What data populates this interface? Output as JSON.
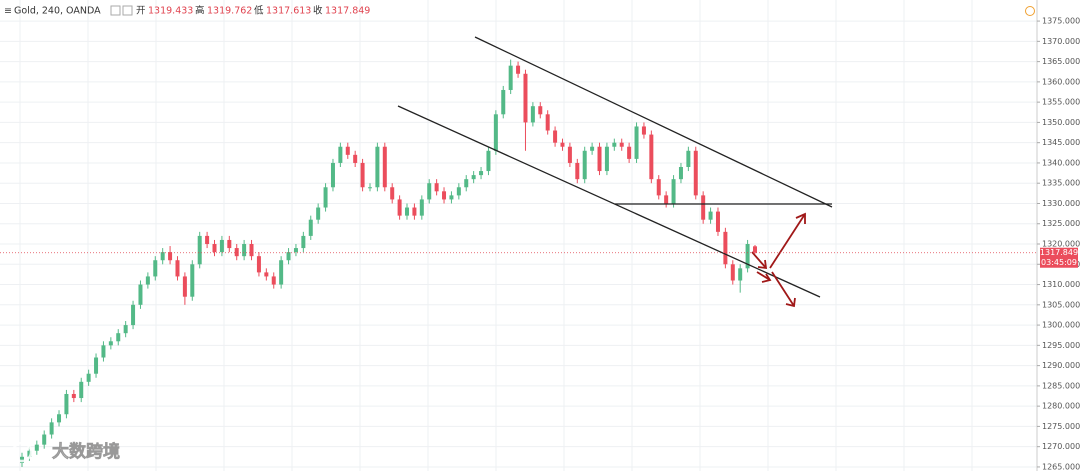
{
  "chart_data": {
    "type": "candlestick",
    "title": "Gold, 240, OANDA",
    "ohlc_labels": [
      "开",
      "高",
      "低",
      "收"
    ],
    "countdown": "03:45:09",
    "watermark": "大数跨境",
    "up_color": "#53b987",
    "down_color": "#eb4d5c",
    "open": [
      1266,
      1267.5,
      1269,
      1270.5,
      1273,
      1276,
      1278,
      1283,
      1282,
      1286,
      1288,
      1292,
      1295,
      1296,
      1298,
      1300,
      1305,
      1310,
      1312,
      1316,
      1318,
      1316,
      1312,
      1307,
      1315,
      1322,
      1320,
      1318,
      1321,
      1319,
      1317,
      1320,
      1317,
      1313,
      1312,
      1310,
      1316,
      1318,
      1319,
      1322,
      1326,
      1329,
      1334,
      1340,
      1344,
      1342,
      1340,
      1334,
      1334,
      1344,
      1334,
      1331,
      1327,
      1329,
      1327,
      1331,
      1335,
      1333,
      1331,
      1332,
      1334,
      1336,
      1337,
      1338,
      1343,
      1352,
      1358,
      1364,
      1362,
      1350,
      1354,
      1352,
      1348,
      1345,
      1344,
      1340,
      1336,
      1343,
      1344,
      1338,
      1344,
      1345,
      1344,
      1341,
      1349,
      1347,
      1336,
      1332,
      1330,
      1336,
      1339,
      1343,
      1332,
      1326,
      1328,
      1323,
      1315,
      1311,
      1314,
      1319.433
    ],
    "high": [
      1268.5,
      1270,
      1271.5,
      1274,
      1277,
      1279,
      1284,
      1284,
      1287,
      1289,
      1293,
      1296,
      1297,
      1299,
      1301,
      1306,
      1311,
      1313,
      1317,
      1319,
      1319.5,
      1317,
      1313,
      1316,
      1323,
      1323,
      1321,
      1322,
      1322,
      1320,
      1321,
      1321,
      1318,
      1314,
      1313,
      1317,
      1319,
      1320,
      1323,
      1327,
      1330,
      1335,
      1341,
      1345,
      1345,
      1343,
      1341,
      1335,
      1345,
      1345,
      1335,
      1332,
      1330,
      1330,
      1332,
      1336,
      1336,
      1334,
      1333,
      1335,
      1337,
      1338,
      1339,
      1344,
      1353,
      1359,
      1365.5,
      1365,
      1363,
      1355,
      1355,
      1353,
      1349,
      1346,
      1345,
      1341,
      1344,
      1345,
      1345,
      1345,
      1346,
      1346,
      1345,
      1350,
      1350,
      1348,
      1337,
      1333,
      1337,
      1340,
      1344,
      1344,
      1333,
      1329,
      1329,
      1324,
      1316,
      1315,
      1321,
      1319.762
    ],
    "low": [
      1265,
      1266.5,
      1268,
      1269.5,
      1272,
      1275,
      1277,
      1281,
      1281,
      1285,
      1287,
      1291,
      1294,
      1295,
      1297,
      1299,
      1304,
      1309,
      1311,
      1315,
      1315,
      1311,
      1305,
      1306,
      1314,
      1319,
      1317,
      1317,
      1318,
      1316,
      1316,
      1316,
      1312,
      1311,
      1309,
      1309,
      1315,
      1317,
      1318,
      1321,
      1325,
      1328,
      1333,
      1339,
      1341,
      1339,
      1333,
      1333,
      1333,
      1333,
      1330,
      1326,
      1326,
      1326,
      1326,
      1330,
      1332,
      1330,
      1330,
      1331,
      1333,
      1335,
      1336,
      1337,
      1342,
      1351,
      1357,
      1361,
      1343,
      1349,
      1351,
      1347,
      1344,
      1343,
      1339,
      1335,
      1335,
      1342,
      1337,
      1337,
      1343,
      1343,
      1340,
      1340,
      1346,
      1335,
      1331,
      1329,
      1329,
      1335,
      1338,
      1331,
      1325,
      1325,
      1322,
      1314,
      1310,
      1308,
      1313,
      1317.613
    ],
    "close": [
      1267.5,
      1269,
      1270.5,
      1273,
      1276,
      1278,
      1283,
      1282,
      1286,
      1288,
      1292,
      1295,
      1296,
      1298,
      1300,
      1305,
      1310,
      1312,
      1316,
      1318,
      1316,
      1312,
      1307,
      1315,
      1322,
      1320,
      1318,
      1321,
      1319,
      1317,
      1320,
      1317,
      1313,
      1312,
      1310,
      1316,
      1318,
      1319,
      1322,
      1326,
      1329,
      1334,
      1340,
      1344,
      1342,
      1340,
      1334,
      1334,
      1344,
      1334,
      1331,
      1327,
      1329,
      1327,
      1331,
      1335,
      1333,
      1331,
      1332,
      1334,
      1336,
      1337,
      1338,
      1343,
      1352,
      1358,
      1364,
      1362,
      1350,
      1354,
      1352,
      1348,
      1345,
      1344,
      1340,
      1336,
      1343,
      1344,
      1338,
      1344,
      1345,
      1344,
      1341,
      1349,
      1347,
      1336,
      1332,
      1330,
      1336,
      1339,
      1343,
      1332,
      1326,
      1328,
      1323,
      1315,
      1311,
      1314,
      1320,
      1317.849
    ],
    "ylim": [
      1264,
      1380.2
    ],
    "yticks": [
      {
        "value": 1265,
        "label": "1265.000"
      },
      {
        "value": 1270,
        "label": "1270.000"
      },
      {
        "value": 1275,
        "label": "1275.000"
      },
      {
        "value": 1280,
        "label": "1280.000"
      },
      {
        "value": 1285,
        "label": "1285.000"
      },
      {
        "value": 1290,
        "label": "1290.000"
      },
      {
        "value": 1295,
        "label": "1295.000"
      },
      {
        "value": 1300,
        "label": "1300.000"
      },
      {
        "value": 1305,
        "label": "1305.000"
      },
      {
        "value": 1310,
        "label": "1310.000"
      },
      {
        "value": 1315,
        "label": "1315.000"
      },
      {
        "value": 1320,
        "label": "1320.000"
      },
      {
        "value": 1325,
        "label": "1325.000"
      },
      {
        "value": 1330,
        "label": "1330.000"
      },
      {
        "value": 1335,
        "label": "1335.000"
      },
      {
        "value": 1340,
        "label": "1340.000"
      },
      {
        "value": 1345,
        "label": "1345.000"
      },
      {
        "value": 1350,
        "label": "1350.000"
      },
      {
        "value": 1355,
        "label": "1355.000"
      },
      {
        "value": 1360,
        "label": "1360.000"
      },
      {
        "value": 1365,
        "label": "1365.000"
      },
      {
        "value": 1370,
        "label": "1370.000"
      },
      {
        "value": 1375,
        "label": "1375.000"
      }
    ],
    "grid": true
  }
}
